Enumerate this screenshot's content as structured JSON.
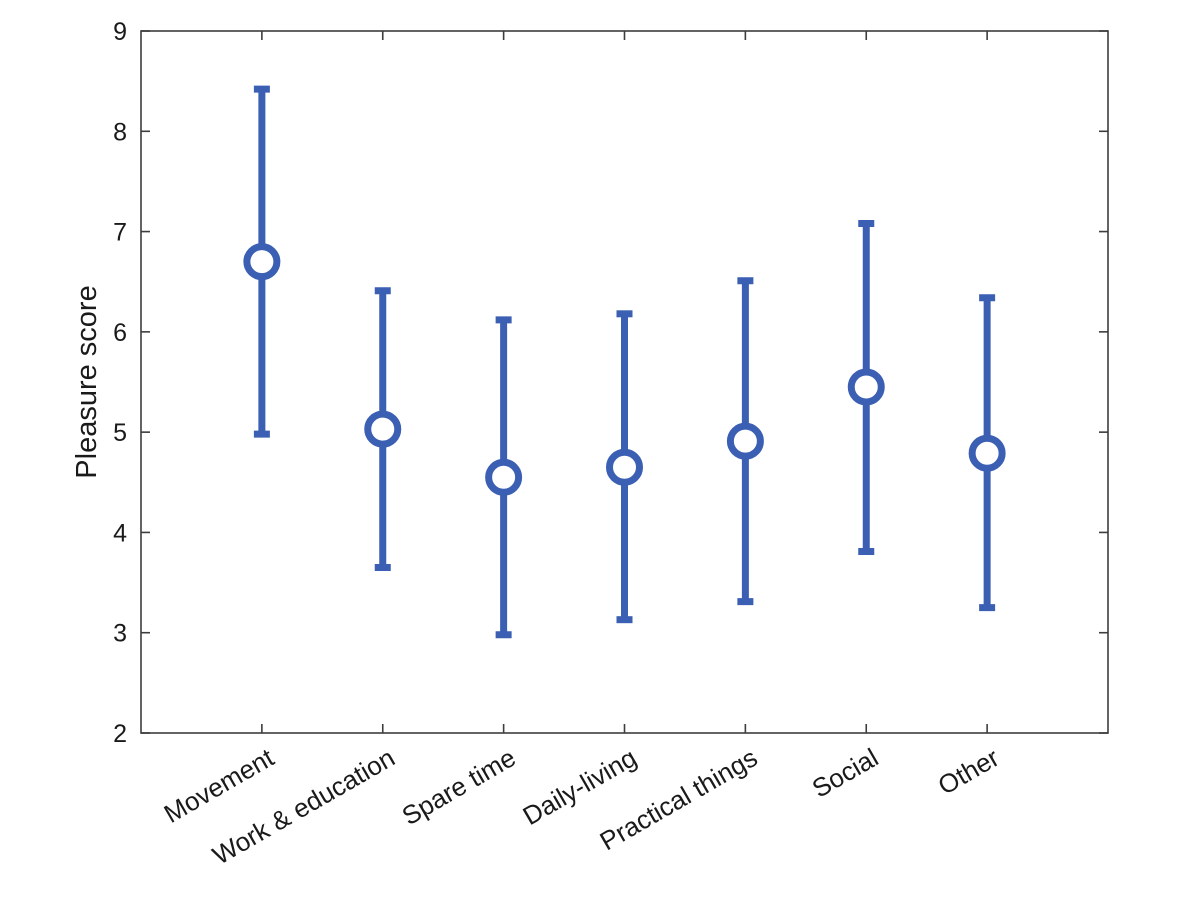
{
  "chart_data": {
    "type": "errorbar",
    "title": "",
    "xlabel": "",
    "ylabel": "Pleasure score",
    "categories": [
      "Movement",
      "Work & education",
      "Spare time",
      "Daily-living",
      "Practical things",
      "Social",
      "Other"
    ],
    "series": [
      {
        "mean": [
          6.7,
          5.03,
          4.55,
          4.65,
          4.91,
          5.45,
          4.79
        ],
        "lower": [
          4.98,
          3.65,
          2.98,
          3.13,
          3.31,
          3.81,
          3.25
        ],
        "upper": [
          8.42,
          6.41,
          6.12,
          6.18,
          6.51,
          7.08,
          6.34
        ],
        "color": "#3a5fb3"
      }
    ],
    "ylim": [
      2,
      9
    ],
    "yticks": [
      2,
      3,
      4,
      5,
      6,
      7,
      8,
      9
    ],
    "grid": false,
    "legend": "none"
  }
}
